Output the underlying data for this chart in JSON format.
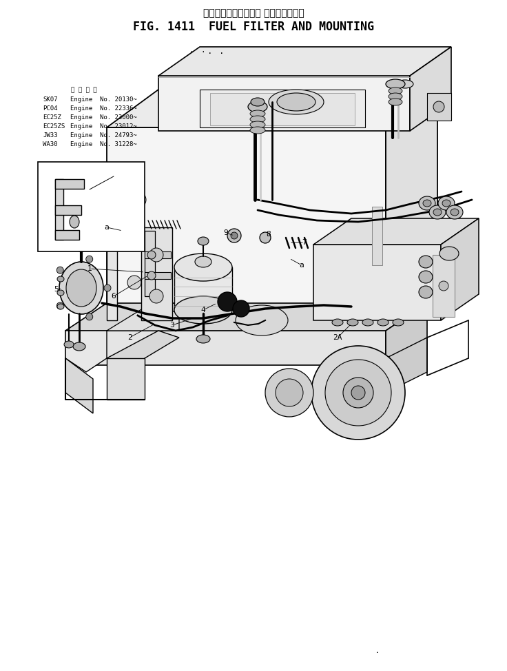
{
  "title_japanese": "フェルフィルタおよび マウンティング",
  "title_english": "FIG. 1411  FUEL FILTER AND MOUNTING",
  "background_color": "#ffffff",
  "table_header": "適 用 号 機",
  "table_rows": [
    [
      "SK07",
      "Engine  No. 20130~"
    ],
    [
      "PC04",
      "Engine  No. 22336~"
    ],
    [
      "EC25Z",
      "Engine  No. 23000~"
    ],
    [
      "EC25ZS",
      "Engine  No. 23012~"
    ],
    [
      "JW33",
      "Engine  No. 24793~"
    ],
    [
      "WA30",
      "Engine  No. 31228~"
    ]
  ],
  "fig_width": 7.36,
  "fig_height": 9.74,
  "dpi": 100
}
